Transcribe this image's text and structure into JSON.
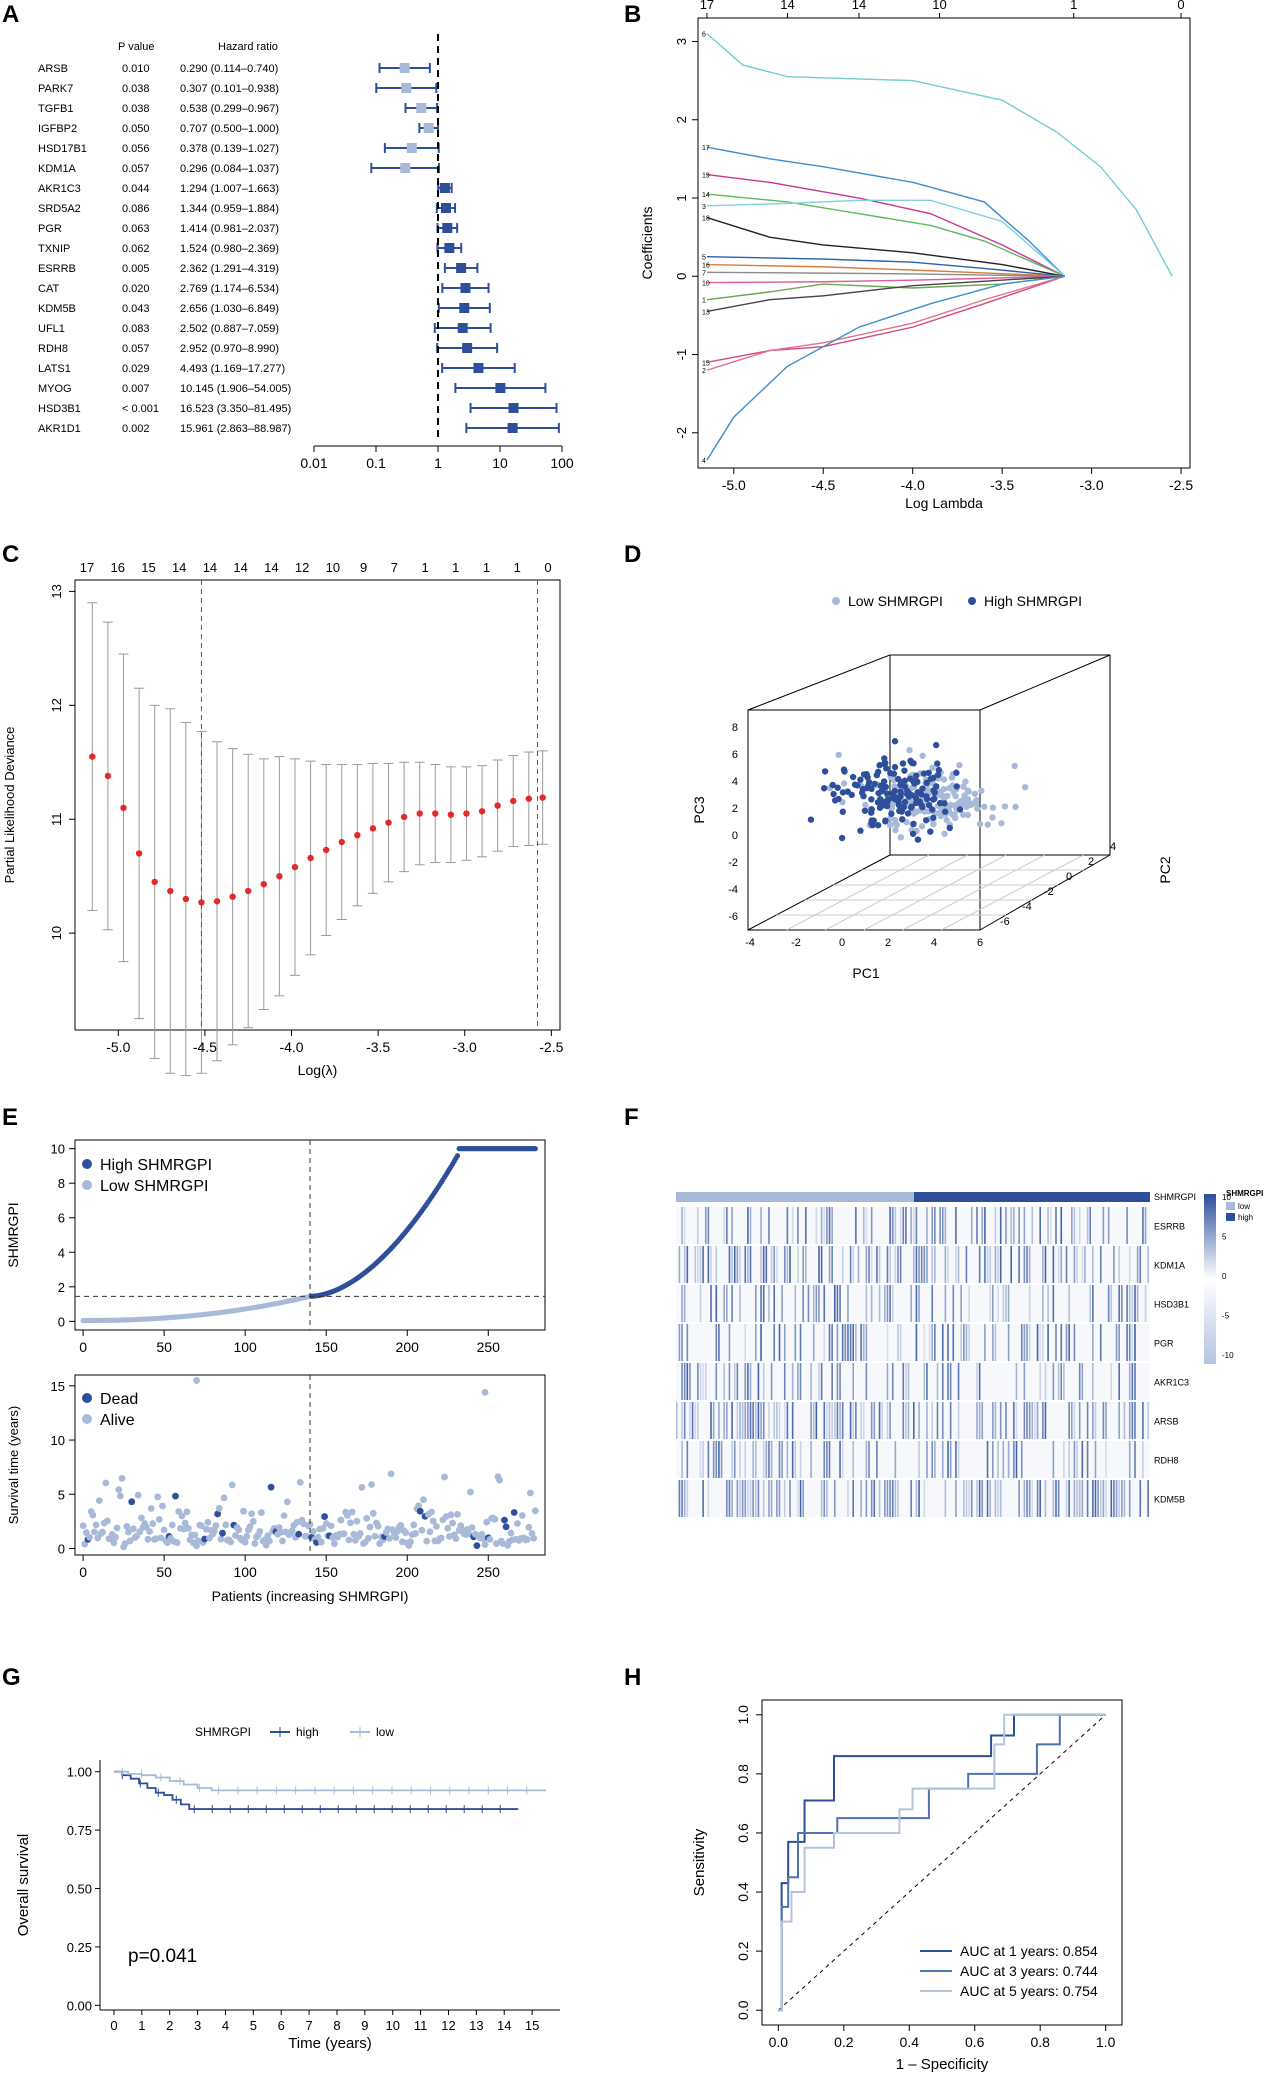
{
  "colors": {
    "high": "#2e4f9b",
    "low": "#a9b9d8",
    "red": "#e3292a",
    "grey": "#9a9a9a",
    "mid": "#4f72b0",
    "light": "#b5c3df"
  },
  "panels": {
    "A": "A",
    "B": "B",
    "C": "C",
    "D": "D",
    "E": "E",
    "F": "F",
    "G": "G",
    "H": "H"
  },
  "chart_data": [
    {
      "panel": "A",
      "type": "forest",
      "title": "",
      "col_headers": {
        "p": "P value",
        "hr": "Hazard ratio"
      },
      "xscale": "log",
      "xlim": [
        0.01,
        100
      ],
      "xticks": [
        "0.01",
        "0.1",
        "1",
        "10",
        "100"
      ],
      "ref_line": 1,
      "rows": [
        {
          "gene": "ARSB",
          "p": "0.010",
          "hr_text": "0.290 (0.114–0.740)",
          "hr": 0.29,
          "lo": 0.114,
          "hi": 0.74
        },
        {
          "gene": "PARK7",
          "p": "0.038",
          "hr_text": "0.307 (0.101–0.938)",
          "hr": 0.307,
          "lo": 0.101,
          "hi": 0.938
        },
        {
          "gene": "TGFB1",
          "p": "0.038",
          "hr_text": "0.538 (0.299–0.967)",
          "hr": 0.538,
          "lo": 0.299,
          "hi": 0.967
        },
        {
          "gene": "IGFBP2",
          "p": "0.050",
          "hr_text": "0.707 (0.500–1.000)",
          "hr": 0.707,
          "lo": 0.5,
          "hi": 1.0
        },
        {
          "gene": "HSD17B1",
          "p": "0.056",
          "hr_text": "0.378 (0.139–1.027)",
          "hr": 0.378,
          "lo": 0.139,
          "hi": 1.027
        },
        {
          "gene": "KDM1A",
          "p": "0.057",
          "hr_text": "0.296 (0.084–1.037)",
          "hr": 0.296,
          "lo": 0.084,
          "hi": 1.037
        },
        {
          "gene": "AKR1C3",
          "p": "0.044",
          "hr_text": "1.294 (1.007–1.663)",
          "hr": 1.294,
          "lo": 1.007,
          "hi": 1.663
        },
        {
          "gene": "SRD5A2",
          "p": "0.086",
          "hr_text": "1.344 (0.959–1.884)",
          "hr": 1.344,
          "lo": 0.959,
          "hi": 1.884
        },
        {
          "gene": "PGR",
          "p": "0.063",
          "hr_text": "1.414 (0.981–2.037)",
          "hr": 1.414,
          "lo": 0.981,
          "hi": 2.037
        },
        {
          "gene": "TXNIP",
          "p": "0.062",
          "hr_text": "1.524 (0.980–2.369)",
          "hr": 1.524,
          "lo": 0.98,
          "hi": 2.369
        },
        {
          "gene": "ESRRB",
          "p": "0.005",
          "hr_text": "2.362 (1.291–4.319)",
          "hr": 2.362,
          "lo": 1.291,
          "hi": 4.319
        },
        {
          "gene": "CAT",
          "p": "0.020",
          "hr_text": "2.769 (1.174–6.534)",
          "hr": 2.769,
          "lo": 1.174,
          "hi": 6.534
        },
        {
          "gene": "KDM5B",
          "p": "0.043",
          "hr_text": "2.656 (1.030–6.849)",
          "hr": 2.656,
          "lo": 1.03,
          "hi": 6.849
        },
        {
          "gene": "UFL1",
          "p": "0.083",
          "hr_text": "2.502 (0.887–7.059)",
          "hr": 2.502,
          "lo": 0.887,
          "hi": 7.059
        },
        {
          "gene": "RDH8",
          "p": "0.057",
          "hr_text": "2.952 (0.970–8.990)",
          "hr": 2.952,
          "lo": 0.97,
          "hi": 8.99
        },
        {
          "gene": "LATS1",
          "p": "0.029",
          "hr_text": "4.493 (1.169–17.277)",
          "hr": 4.493,
          "lo": 1.169,
          "hi": 17.277
        },
        {
          "gene": "MYOG",
          "p": "0.007",
          "hr_text": "10.145 (1.906–54.005)",
          "hr": 10.145,
          "lo": 1.906,
          "hi": 54.005
        },
        {
          "gene": "HSD3B1",
          "p": "< 0.001",
          "hr_text": "16.523 (3.350–81.495)",
          "hr": 16.523,
          "lo": 3.35,
          "hi": 81.495
        },
        {
          "gene": "AKR1D1",
          "p": "0.002",
          "hr_text": "15.961 (2.863–88.987)",
          "hr": 15.961,
          "lo": 2.863,
          "hi": 88.987
        }
      ]
    },
    {
      "panel": "B",
      "type": "line",
      "title": "",
      "xlabel": "Log Lambda",
      "ylabel": "Coefficients",
      "xlim": [
        -5.2,
        -2.45
      ],
      "ylim": [
        -2.45,
        3.3
      ],
      "xticks": [
        "-5.0",
        "-4.5",
        "-4.0",
        "-3.5",
        "-3.0",
        "-2.5"
      ],
      "yticks": [
        "-2",
        "-1",
        "0",
        "1",
        "2",
        "3"
      ],
      "top_ticks": [
        "17",
        "14",
        "14",
        "10",
        "1",
        "0"
      ],
      "series": [
        {
          "name": "6",
          "color": "#71cdd6",
          "x": [
            -5.15,
            -4.95,
            -4.7,
            -4.0,
            -3.5,
            -3.2,
            -2.95,
            -2.75,
            -2.62,
            -2.55
          ],
          "y": [
            3.1,
            2.7,
            2.55,
            2.5,
            2.25,
            1.85,
            1.4,
            0.85,
            0.3,
            0.0
          ]
        },
        {
          "name": "17",
          "color": "#3e8ed0",
          "x": [
            -5.15,
            -4.8,
            -4.5,
            -4.0,
            -3.6,
            -3.35,
            -3.15
          ],
          "y": [
            1.65,
            1.5,
            1.4,
            1.2,
            0.95,
            0.45,
            0.0
          ]
        },
        {
          "name": "19",
          "color": "#c8368f",
          "x": [
            -5.15,
            -4.8,
            -4.3,
            -3.9,
            -3.5,
            -3.15
          ],
          "y": [
            1.3,
            1.2,
            1.0,
            0.8,
            0.4,
            0.0
          ]
        },
        {
          "name": "14",
          "color": "#5fb85f",
          "x": [
            -5.15,
            -4.7,
            -4.3,
            -3.9,
            -3.6,
            -3.15
          ],
          "y": [
            1.05,
            0.95,
            0.8,
            0.65,
            0.45,
            0.0
          ]
        },
        {
          "name": "3",
          "color": "#7fd1e0",
          "x": [
            -5.15,
            -4.7,
            -4.3,
            -3.9,
            -3.5,
            -3.15
          ],
          "y": [
            0.9,
            0.93,
            0.97,
            0.97,
            0.7,
            0.0
          ]
        },
        {
          "name": "18",
          "color": "#222222",
          "x": [
            -5.15,
            -4.8,
            -4.5,
            -4.0,
            -3.5,
            -3.15
          ],
          "y": [
            0.75,
            0.5,
            0.4,
            0.3,
            0.15,
            0.0
          ]
        },
        {
          "name": "5",
          "color": "#2f5fad",
          "x": [
            -5.15,
            -4.5,
            -4.0,
            -3.6,
            -3.15
          ],
          "y": [
            0.25,
            0.22,
            0.18,
            0.1,
            0.0
          ]
        },
        {
          "name": "16",
          "color": "#d97b40",
          "x": [
            -5.15,
            -4.5,
            -4.0,
            -3.15
          ],
          "y": [
            0.15,
            0.12,
            0.08,
            0.0
          ]
        },
        {
          "name": "7",
          "color": "#8c8c8c",
          "x": [
            -5.15,
            -4.5,
            -4.0,
            -3.15
          ],
          "y": [
            0.05,
            0.04,
            0.03,
            0.0
          ]
        },
        {
          "name": "10",
          "color": "#e05b9a",
          "x": [
            -5.15,
            -4.5,
            -4.0,
            -3.15
          ],
          "y": [
            -0.08,
            -0.07,
            -0.05,
            0.0
          ]
        },
        {
          "name": "1",
          "color": "#6aa84f",
          "x": [
            -5.15,
            -4.8,
            -4.5,
            -4.0,
            -3.5,
            -3.15
          ],
          "y": [
            -0.3,
            -0.2,
            -0.1,
            -0.15,
            -0.1,
            0.0
          ]
        },
        {
          "name": "13",
          "color": "#444444",
          "x": [
            -5.15,
            -4.8,
            -4.5,
            -4.0,
            -3.15
          ],
          "y": [
            -0.45,
            -0.3,
            -0.25,
            -0.12,
            0.0
          ]
        },
        {
          "name": "15",
          "color": "#d8457a",
          "x": [
            -5.15,
            -4.8,
            -4.5,
            -4.0,
            -3.6,
            -3.15
          ],
          "y": [
            -1.1,
            -0.95,
            -0.9,
            -0.65,
            -0.35,
            0.0
          ]
        },
        {
          "name": "2",
          "color": "#e07585",
          "x": [
            -5.15,
            -4.8,
            -4.5,
            -4.0,
            -3.6,
            -3.15
          ],
          "y": [
            -1.2,
            -0.95,
            -0.85,
            -0.6,
            -0.3,
            0.0
          ]
        },
        {
          "name": "4",
          "color": "#3b8fd0",
          "x": [
            -5.15,
            -5.0,
            -4.7,
            -4.3,
            -3.9,
            -3.5,
            -3.15
          ],
          "y": [
            -2.35,
            -1.8,
            -1.15,
            -0.65,
            -0.35,
            -0.1,
            0.0
          ]
        }
      ]
    },
    {
      "panel": "C",
      "type": "scatter",
      "title": "",
      "xlabel": "Log(λ)",
      "ylabel": "Partial Likelihood Deviance",
      "xlim": [
        -5.25,
        -2.45
      ],
      "ylim": [
        9.15,
        13.1
      ],
      "xticks": [
        "-5.0",
        "-4.5",
        "-4.0",
        "-3.5",
        "-3.0",
        "-2.5"
      ],
      "yticks": [
        "10",
        "11",
        "12",
        "13"
      ],
      "top_ticks": [
        "17",
        "16",
        "15",
        "14",
        "14",
        "14",
        "14",
        "12",
        "10",
        "9",
        "7",
        "1",
        "1",
        "1",
        "1",
        "0"
      ],
      "vlines": [
        -4.52,
        -2.58
      ],
      "x": [
        -5.15,
        -5.06,
        -4.97,
        -4.88,
        -4.79,
        -4.7,
        -4.61,
        -4.52,
        -4.43,
        -4.34,
        -4.25,
        -4.16,
        -4.07,
        -3.98,
        -3.89,
        -3.8,
        -3.71,
        -3.62,
        -3.53,
        -3.44,
        -3.35,
        -3.26,
        -3.17,
        -3.08,
        -2.99,
        -2.9,
        -2.81,
        -2.72,
        -2.63,
        -2.55
      ],
      "y": [
        11.55,
        11.38,
        11.1,
        10.7,
        10.45,
        10.37,
        10.3,
        10.27,
        10.28,
        10.32,
        10.37,
        10.43,
        10.5,
        10.58,
        10.66,
        10.73,
        10.8,
        10.86,
        10.92,
        10.97,
        11.02,
        11.05,
        11.05,
        11.04,
        11.05,
        11.07,
        11.12,
        11.16,
        11.18,
        11.19
      ],
      "err": [
        1.35,
        1.35,
        1.35,
        1.45,
        1.55,
        1.6,
        1.55,
        1.5,
        1.4,
        1.3,
        1.2,
        1.1,
        1.05,
        0.95,
        0.85,
        0.75,
        0.68,
        0.62,
        0.57,
        0.52,
        0.48,
        0.45,
        0.43,
        0.42,
        0.41,
        0.4,
        0.4,
        0.4,
        0.41,
        0.41
      ]
    },
    {
      "panel": "D",
      "type": "scatter",
      "title": "",
      "legend": [
        "Low SHMRGPI",
        "High SHMRGPI"
      ],
      "xlabel": "PC1",
      "ylabel": "PC3",
      "zlabel": "PC2",
      "xticks": [
        "-4",
        "-2",
        "0",
        "2",
        "4",
        "6"
      ],
      "yticks": [
        "-6",
        "-4",
        "-2",
        "0",
        "2",
        "4",
        "6",
        "8"
      ],
      "zticks": [
        "-6",
        "-4",
        "-2",
        "0",
        "2",
        "4"
      ],
      "points_summary": "about 280 points per model; low group centred near PC1 2..4, high group near PC1 -1..2"
    },
    {
      "panel": "E1",
      "type": "scatter",
      "title": "",
      "xlabel": "",
      "ylabel": "SHMRGPI",
      "legend": [
        "High SHMRGPI",
        "Low SHMRGPI"
      ],
      "xlim": [
        -5,
        285
      ],
      "ylim": [
        -0.5,
        10.5
      ],
      "xticks": [
        "0",
        "50",
        "100",
        "150",
        "200",
        "250"
      ],
      "yticks": [
        "0",
        "2",
        "4",
        "6",
        "8",
        "10"
      ],
      "cutoff_x": 140,
      "cutoff_y": 1.45,
      "n_patients": 280
    },
    {
      "panel": "E2",
      "type": "scatter",
      "title": "",
      "xlabel": "Patients (increasing SHMRGPI)",
      "ylabel": "Survival time (years)",
      "legend": [
        "Dead",
        "Alive"
      ],
      "xlim": [
        -5,
        285
      ],
      "ylim": [
        -0.6,
        16
      ],
      "xticks": [
        "0",
        "50",
        "100",
        "150",
        "200",
        "250"
      ],
      "yticks": [
        "0",
        "5",
        "10",
        "15"
      ],
      "cutoff_x": 140
    },
    {
      "panel": "F",
      "type": "heatmap",
      "title": "",
      "rows": [
        "SHMRGPI",
        "ESRRB",
        "KDM1A",
        "HSD3B1",
        "PGR",
        "AKR1C3",
        "ARSB",
        "RDH8",
        "KDM5B"
      ],
      "legend_title": "SHMRGPI",
      "legend_items": [
        "low",
        "high"
      ],
      "colorbar_ticks": [
        "10",
        "5",
        "0",
        "-5",
        "-10"
      ]
    },
    {
      "panel": "G",
      "type": "line",
      "title": "",
      "legend_title": "SHMRGPI",
      "legend": [
        "high",
        "low"
      ],
      "xlabel": "Time (years)",
      "ylabel": "Overall survival",
      "xlim": [
        -0.5,
        16
      ],
      "ylim": [
        -0.02,
        1.05
      ],
      "xticks": [
        "0",
        "1",
        "2",
        "3",
        "4",
        "5",
        "6",
        "7",
        "8",
        "9",
        "10",
        "11",
        "12",
        "13",
        "14",
        "15"
      ],
      "yticks": [
        "0.00",
        "0.25",
        "0.50",
        "0.75",
        "1.00"
      ],
      "annotation": "p=0.041",
      "series": [
        {
          "name": "high",
          "t": [
            0,
            0.3,
            0.6,
            0.9,
            1.2,
            1.5,
            1.8,
            2.1,
            2.4,
            2.7,
            14.5
          ],
          "s": [
            1.0,
            0.985,
            0.97,
            0.95,
            0.93,
            0.91,
            0.9,
            0.88,
            0.86,
            0.84,
            0.84
          ]
        },
        {
          "name": "low",
          "t": [
            0,
            0.5,
            1.0,
            1.5,
            2.0,
            2.5,
            3.0,
            3.5,
            15.5
          ],
          "s": [
            1.0,
            0.99,
            0.985,
            0.975,
            0.96,
            0.945,
            0.93,
            0.92,
            0.92
          ]
        }
      ]
    },
    {
      "panel": "H",
      "type": "line",
      "title": "",
      "xlabel": "1 – Specificity",
      "ylabel": "Sensitivity",
      "xlim": [
        -0.05,
        1.05
      ],
      "ylim": [
        -0.05,
        1.05
      ],
      "xticks": [
        "0.0",
        "0.2",
        "0.4",
        "0.6",
        "0.8",
        "1.0"
      ],
      "yticks": [
        "0.0",
        "0.2",
        "0.4",
        "0.6",
        "0.8",
        "1.0"
      ],
      "legend": [
        "AUC at 1 years: 0.854",
        "AUC at 3 years: 0.744",
        "AUC at 5 years: 0.754"
      ],
      "series": [
        {
          "name": "1 years",
          "auc": 0.854,
          "x": [
            0,
            0.01,
            0.01,
            0.03,
            0.03,
            0.08,
            0.08,
            0.17,
            0.17,
            0.65,
            0.65,
            0.72,
            0.72,
            1
          ],
          "y": [
            0,
            0,
            0.43,
            0.43,
            0.57,
            0.57,
            0.71,
            0.71,
            0.86,
            0.86,
            0.93,
            0.93,
            1,
            1
          ]
        },
        {
          "name": "3 years",
          "auc": 0.744,
          "x": [
            0,
            0.01,
            0.01,
            0.03,
            0.03,
            0.06,
            0.06,
            0.18,
            0.18,
            0.46,
            0.46,
            0.58,
            0.58,
            0.79,
            0.79,
            0.86,
            0.86,
            1
          ],
          "y": [
            0,
            0,
            0.35,
            0.35,
            0.45,
            0.45,
            0.6,
            0.6,
            0.65,
            0.65,
            0.75,
            0.75,
            0.8,
            0.8,
            0.9,
            0.9,
            1,
            1
          ]
        },
        {
          "name": "5 years",
          "auc": 0.754,
          "x": [
            0,
            0.01,
            0.01,
            0.04,
            0.04,
            0.08,
            0.08,
            0.17,
            0.17,
            0.37,
            0.37,
            0.41,
            0.41,
            0.66,
            0.66,
            0.69,
            0.69,
            1
          ],
          "y": [
            0,
            0,
            0.3,
            0.3,
            0.4,
            0.4,
            0.55,
            0.55,
            0.6,
            0.6,
            0.68,
            0.68,
            0.75,
            0.75,
            0.9,
            0.9,
            1,
            1
          ]
        }
      ]
    }
  ]
}
